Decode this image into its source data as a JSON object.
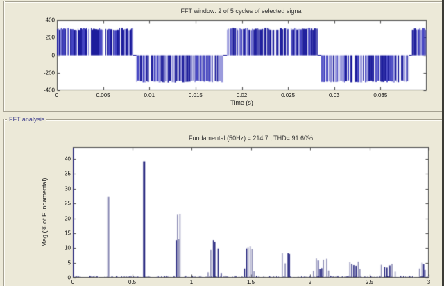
{
  "window": {
    "background": "#ece9d8"
  },
  "fft_analysis_group": {
    "label": "FFT analysis",
    "label_color": "#43438f"
  },
  "chart_data": [
    {
      "type": "bar",
      "subtype": "pwm-waveform",
      "title": "FFT window: 2 of 5 cycles of selected signal",
      "xlabel": "Time (s)",
      "ylabel": "",
      "xlim": [
        0,
        0.04
      ],
      "ylim": [
        -400,
        400
      ],
      "xticks": [
        0,
        0.005,
        0.01,
        0.015,
        0.02,
        0.025,
        0.03,
        0.035
      ],
      "xtick_labels": [
        "0",
        "0.005",
        "0.01",
        "0.015",
        "0.02",
        "0.025",
        "0.03",
        "0.035"
      ],
      "yticks": [
        -400,
        -200,
        0,
        200,
        400
      ],
      "ytick_labels": [
        "-400",
        "-200",
        "0",
        "200",
        "400"
      ],
      "grid": false,
      "amplitude": 310,
      "segments": [
        [
          0.0,
          0.00825,
          1
        ],
        [
          0.0086,
          0.018,
          -1
        ],
        [
          0.0184,
          0.0282,
          1
        ],
        [
          0.0286,
          0.0381,
          -1
        ],
        [
          0.0384,
          0.04,
          1
        ]
      ],
      "seed": 12,
      "colors": {
        "dark": "#1d1d9c",
        "mid": "#4646c2",
        "light": "#9898dc"
      },
      "frame_color": "#4d4d4d"
    },
    {
      "type": "bar",
      "subtype": "harmonic-spectrum",
      "title": "Fundamental (50Hz) = 214.7 , THD= 91.60%",
      "xlabel": "",
      "ylabel": "Mag (% of Fundamental)",
      "xlim": [
        0,
        3
      ],
      "ylim": [
        0,
        44
      ],
      "xticks": [
        0,
        0.5,
        1,
        1.5,
        2,
        2.5,
        3
      ],
      "xtick_labels": [
        "0",
        "0.5",
        "1",
        "1.5",
        "2",
        "2.5",
        "3"
      ],
      "yticks": [
        0,
        5,
        10,
        15,
        20,
        25,
        30,
        35,
        40
      ],
      "ytick_labels": [
        "0",
        "5",
        "10",
        "15",
        "20",
        "25",
        "30",
        "35",
        "40"
      ],
      "grid": false,
      "fundamental_hz": 50,
      "fundamental_value": 214.7,
      "thd_percent": 91.6,
      "bars": [
        [
          0.005,
          44.0,
          "d"
        ],
        [
          0.295,
          27.2,
          "l"
        ],
        [
          0.303,
          27.2,
          "l"
        ],
        [
          0.597,
          39.2,
          "d"
        ],
        [
          0.605,
          39.2,
          "d"
        ],
        [
          0.872,
          12.6,
          "d"
        ],
        [
          0.882,
          21.2,
          "l"
        ],
        [
          0.893,
          12.9,
          "l"
        ],
        [
          0.903,
          21.5,
          "l"
        ],
        [
          1.14,
          1.8,
          "l"
        ],
        [
          1.163,
          9.4,
          "l"
        ],
        [
          1.185,
          12.6,
          "d"
        ],
        [
          1.197,
          12.1,
          "d"
        ],
        [
          1.225,
          9.9,
          "d"
        ],
        [
          1.25,
          1.6,
          "d"
        ],
        [
          1.447,
          3.1,
          "d"
        ],
        [
          1.465,
          9.9,
          "d"
        ],
        [
          1.477,
          10.2,
          "l"
        ],
        [
          1.495,
          10.5,
          "l"
        ],
        [
          1.511,
          9.7,
          "l"
        ],
        [
          1.527,
          2.1,
          "l"
        ],
        [
          1.765,
          8.2,
          "l"
        ],
        [
          1.79,
          4.8,
          "l"
        ],
        [
          1.814,
          8.2,
          "d"
        ],
        [
          1.826,
          8.0,
          "d"
        ],
        [
          2.028,
          2.3,
          "l"
        ],
        [
          2.052,
          6.5,
          "l"
        ],
        [
          2.068,
          5.8,
          "d"
        ],
        [
          2.083,
          2.9,
          "d"
        ],
        [
          2.098,
          3.2,
          "d"
        ],
        [
          2.112,
          6.1,
          "l"
        ],
        [
          2.14,
          6.4,
          "l"
        ],
        [
          2.156,
          2.4,
          "l"
        ],
        [
          2.335,
          5.2,
          "l"
        ],
        [
          2.352,
          4.6,
          "d"
        ],
        [
          2.368,
          4.2,
          "d"
        ],
        [
          2.387,
          4.0,
          "d"
        ],
        [
          2.406,
          5.4,
          "l"
        ],
        [
          2.42,
          2.9,
          "l"
        ],
        [
          2.6,
          4.3,
          "l"
        ],
        [
          2.628,
          3.6,
          "d"
        ],
        [
          2.648,
          3.4,
          "d"
        ],
        [
          2.672,
          4.1,
          "d"
        ],
        [
          2.69,
          4.6,
          "l"
        ],
        [
          2.717,
          2.0,
          "l"
        ],
        [
          2.922,
          3.1,
          "l"
        ],
        [
          2.944,
          5.0,
          "l"
        ],
        [
          2.957,
          4.5,
          "d"
        ],
        [
          2.968,
          2.6,
          "d"
        ]
      ],
      "noise": {
        "count": 340,
        "max": 0.6,
        "seed": 9
      },
      "colors": {
        "dark": "#23237d",
        "light": "#9090b8"
      },
      "frame_color": "#4d4d4d"
    }
  ]
}
